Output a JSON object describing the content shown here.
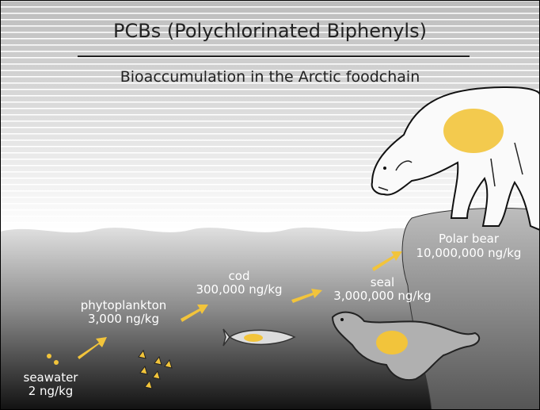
{
  "title": "PCBs (Polychlorinated Biphenyls)",
  "subtitle": "Bioaccumulation in the Arctic foodchain",
  "nodes": [
    {
      "label": "seawater",
      "value": "2 ng/kg"
    },
    {
      "label": "phytoplankton",
      "value": "3,000 ng/kg"
    },
    {
      "label": "cod",
      "value": "300,000 ng/kg"
    },
    {
      "label": "seal",
      "value": "3,000,000 ng/kg"
    },
    {
      "label": "Polar bear",
      "value": "10,000,000 ng/kg"
    }
  ]
}
